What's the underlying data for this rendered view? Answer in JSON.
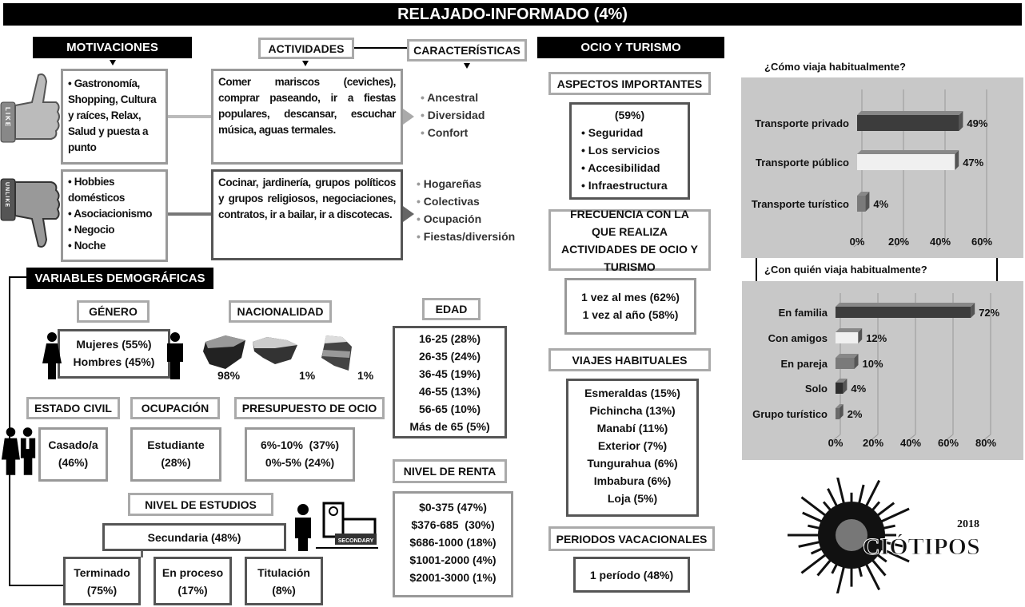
{
  "title": "RELAJADO-INFORMADO (4%)",
  "motivaciones": {
    "header": "MOTIVACIONES",
    "like_items": [
      "Gastronomía, Shopping, Cultura y raíces, Relax, Salud y puesta a punto"
    ],
    "dislike_items": [
      "Hobbies domésticos",
      "Asociacionismo",
      "Negocio",
      "Noche"
    ],
    "like_icon": "thumbs-up-icon",
    "dislike_icon": "thumbs-down-icon",
    "like_icon_text": "LIKE",
    "dislike_icon_text": "UNLIKE"
  },
  "actividades": {
    "header": "ACTIVIDADES",
    "like_text": "Comer mariscos (ceviches), comprar paseando, ir a fiestas populares, descansar, escuchar música, aguas termales.",
    "dislike_text": "Cocinar, jardinería, grupos políticos y grupos religiosos, negociaciones, contratos, ir a bailar, ir a discotecas."
  },
  "caracteristicas": {
    "header": "CARACTERÍSTICAS",
    "like_items": [
      "Ancestral",
      "Diversidad",
      "Confort"
    ],
    "dislike_items": [
      "Hogareñas",
      "Colectivas",
      "Ocupación",
      "Fiestas/diversión"
    ]
  },
  "ocio": {
    "header": "OCIO Y TURISMO",
    "aspectos": {
      "header": "ASPECTOS IMPORTANTES",
      "pct": "(59%)",
      "items": [
        "Seguridad",
        "Los servicios",
        "Accesibilidad",
        "Infraestructura"
      ]
    },
    "frecuencia": {
      "header": "FRECUENCIA CON LA QUE REALIZA ACTIVIDADES DE OCIO Y TURISMO",
      "items": [
        "1 vez al mes (62%)",
        "1 vez al año (58%)"
      ]
    },
    "viajes": {
      "header": "VIAJES HABITUALES",
      "items": [
        "Esmeraldas (15%)",
        "Pichincha (13%)",
        "Manabí (11%)",
        "Exterior (7%)",
        "Tungurahua (6%)",
        "Imbabura (6%)",
        "Loja (5%)"
      ]
    },
    "periodos": {
      "header": "PERIODOS VACACIONALES",
      "value": "1 período (48%)"
    }
  },
  "demograficas": {
    "header": "VARIABLES DEMOGRÁFICAS",
    "genero": {
      "header": "GÉNERO",
      "items": [
        "Mujeres (55%)",
        "Hombres (45%)"
      ]
    },
    "nacionalidad": {
      "header": "NACIONALIDAD",
      "items": [
        "98%",
        "1%",
        "1%"
      ]
    },
    "edad": {
      "header": "EDAD",
      "items": [
        "16-25 (28%)",
        "26-35 (24%)",
        "36-45 (19%)",
        "46-55 (13%)",
        "56-65 (10%)",
        "Más de 65 (5%)"
      ]
    },
    "estado_civil": {
      "header": "ESTADO CIVIL",
      "value": "Casado/a",
      "pct": "(46%)"
    },
    "ocupacion": {
      "header": "OCUPACIÓN",
      "value": "Estudiante",
      "pct": "(28%)"
    },
    "presupuesto": {
      "header": "PRESUPUESTO DE OCIO",
      "items": [
        "6%-10%  (37%)",
        "0%-5% (24%)"
      ]
    },
    "renta": {
      "header": "NIVEL DE RENTA",
      "items": [
        "$0-375 (47%)",
        "$376-685  (30%)",
        "$686-1000 (18%)",
        "$1001-2000 (4%)",
        "$2001-3000 (1%)"
      ]
    },
    "estudios": {
      "header": "NIVEL DE ESTUDIOS",
      "main": "Secundaria (48%)",
      "icon_text": "SECONDARY",
      "sub": [
        {
          "label": "Terminado",
          "pct": "(75%)"
        },
        {
          "label": "En proceso",
          "pct": "(17%)"
        },
        {
          "label": "Titulación",
          "pct": "(8%)"
        }
      ]
    }
  },
  "logo": {
    "text": "CIÓTIPOS",
    "year": "2018"
  },
  "chart_data": [
    {
      "type": "bar",
      "orientation": "horizontal",
      "title": "¿Cómo viaja habitualmente?",
      "categories": [
        "Transporte privado",
        "Transporte público",
        "Transporte turístico"
      ],
      "values": [
        49,
        47,
        4
      ],
      "data_labels": [
        "49%",
        "47%",
        "4%"
      ],
      "xlim": [
        0,
        60
      ],
      "ticks": [
        "0%",
        "20%",
        "40%",
        "60%"
      ],
      "colors": [
        "#3c3c3c",
        "#f0f0f0",
        "#7a7a7a"
      ],
      "grid": true
    },
    {
      "type": "bar",
      "orientation": "horizontal",
      "title": "¿Con quién viaja habitualmente?",
      "categories": [
        "En familia",
        "Con amigos",
        "En pareja",
        "Solo",
        "Grupo turístico"
      ],
      "values": [
        72,
        12,
        10,
        4,
        2
      ],
      "data_labels": [
        "72%",
        "12%",
        "10%",
        "4%",
        "2%"
      ],
      "xlim": [
        0,
        80
      ],
      "ticks": [
        "0%",
        "20%",
        "40%",
        "60%",
        "80%"
      ],
      "colors": [
        "#3c3c3c",
        "#f0f0f0",
        "#7a7a7a",
        "#2e2e2e",
        "#6a6a6a"
      ],
      "grid": true
    }
  ]
}
